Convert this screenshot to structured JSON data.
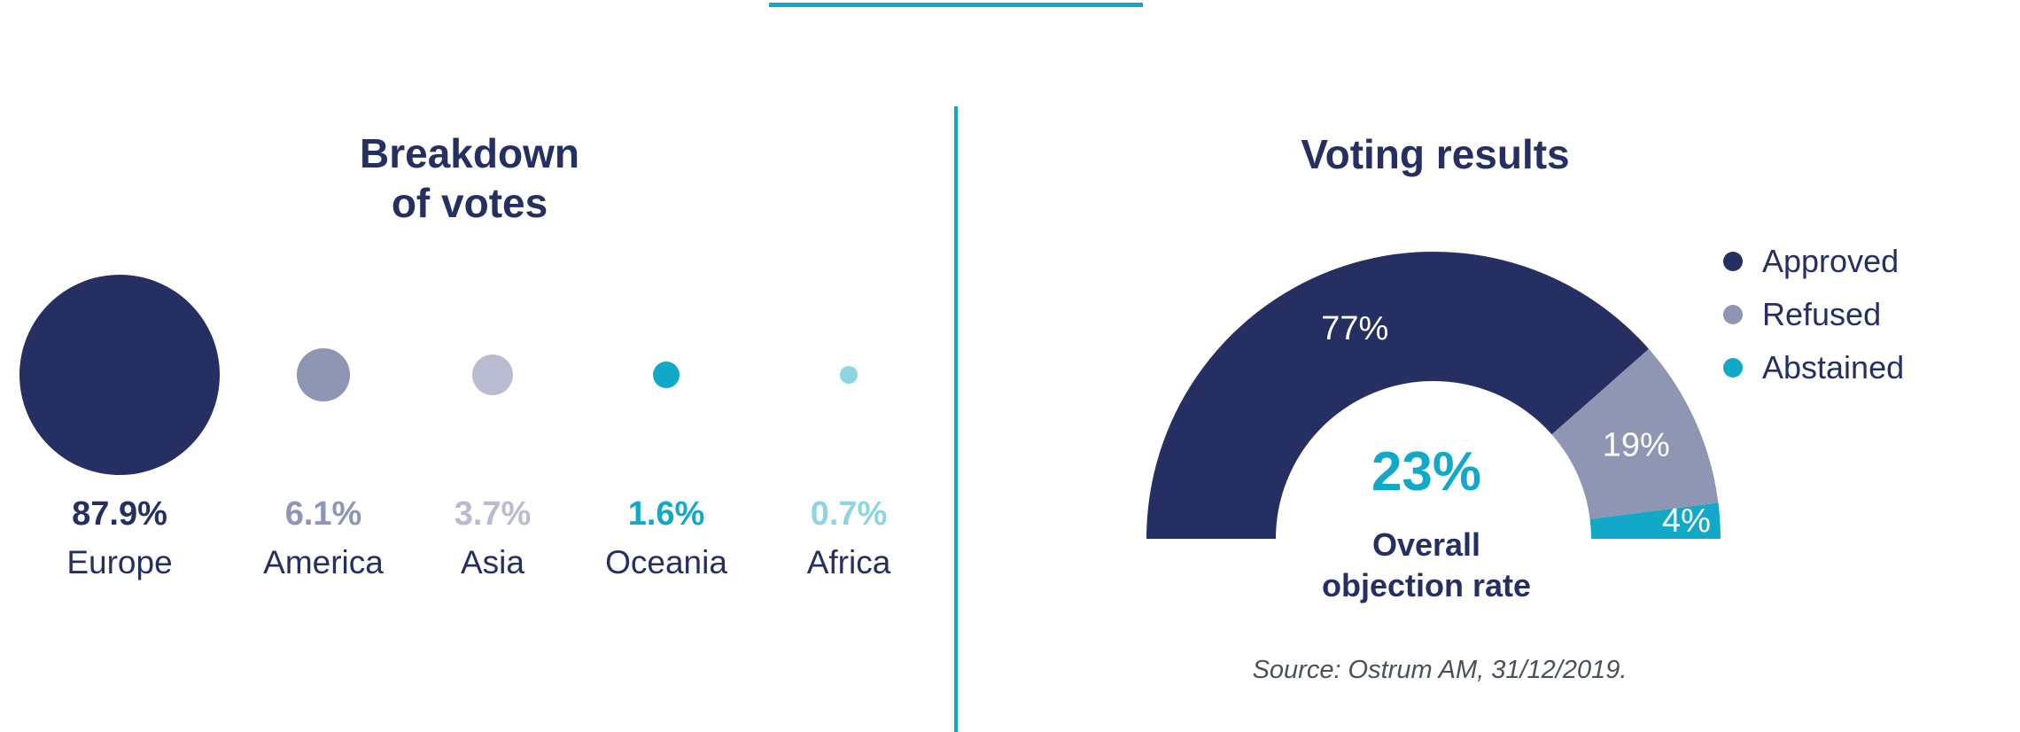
{
  "colors": {
    "navy": "#262f62",
    "slate": "#8f96b4",
    "lavender": "#b9bcd1",
    "teal": "#12a9c9",
    "light_teal": "#8ed4e2"
  },
  "left_panel": {
    "title_line1": "Breakdown",
    "title_line2": "of votes"
  },
  "right_panel": {
    "title": "Voting results",
    "center_value": "23%",
    "center_label_line1": "Overall",
    "center_label_line2": "objection rate",
    "source": "Source: Ostrum AM, 31/12/2019."
  },
  "chart_data": [
    {
      "type": "bubble",
      "title": "Breakdown of votes",
      "categories": [
        "Europe",
        "America",
        "Asia",
        "Oceania",
        "Africa"
      ],
      "values": [
        87.9,
        6.1,
        3.7,
        1.6,
        0.7
      ],
      "labels": [
        "87.9%",
        "6.1%",
        "3.7%",
        "1.6%",
        "0.7%"
      ],
      "colors": [
        "#262f62",
        "#8f96b4",
        "#b9bcd1",
        "#12a9c9",
        "#8ed4e2"
      ]
    },
    {
      "type": "pie",
      "subtype": "semi-donut",
      "title": "Voting results",
      "categories": [
        "Approved",
        "Refused",
        "Abstained"
      ],
      "values": [
        77,
        19,
        4
      ],
      "labels": [
        "77%",
        "19%",
        "4%"
      ],
      "colors": [
        "#262f62",
        "#8f96b4",
        "#12a9c9"
      ],
      "legend_position": "right"
    }
  ]
}
